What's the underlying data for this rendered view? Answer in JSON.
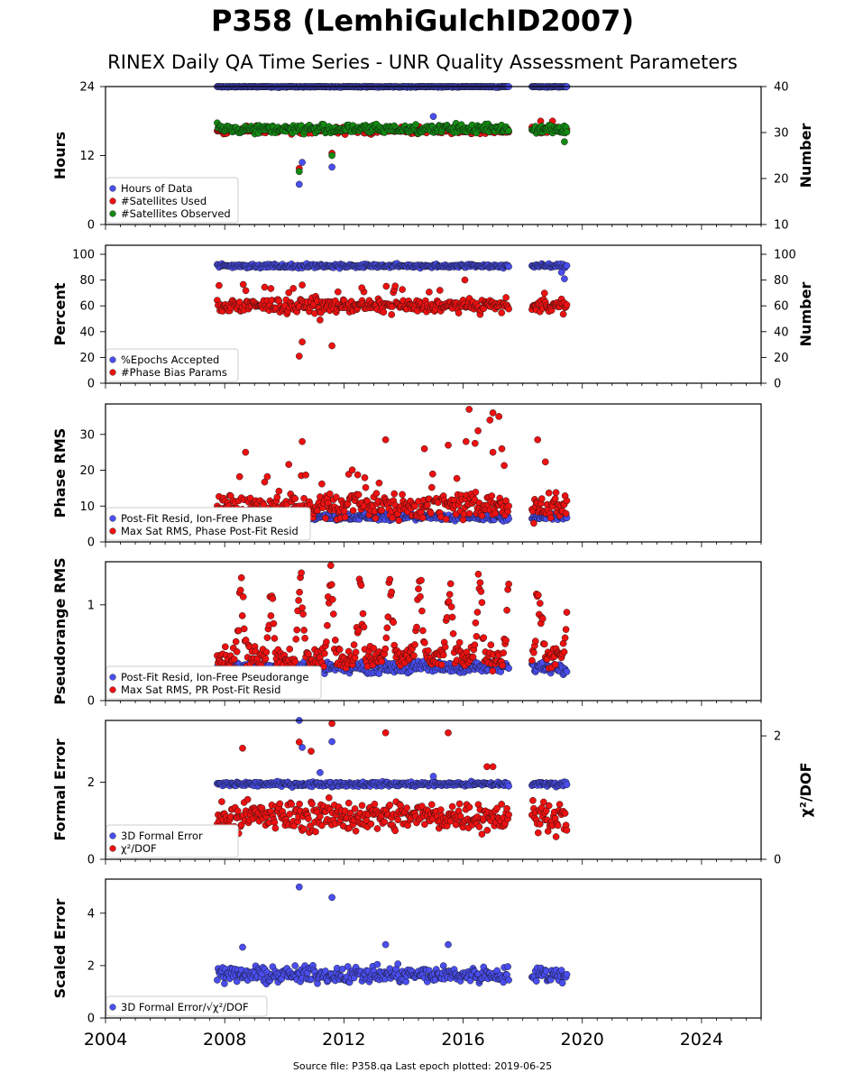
{
  "header": {
    "title": "P358 (LemhiGulchID2007)",
    "subtitle": "RINEX Daily QA Time Series - UNR Quality Assessment Parameters"
  },
  "footer": {
    "source": "Source file: P358.qa Last epoch plotted: 2019-06-25"
  },
  "colors": {
    "blue": "#4a4ef0",
    "red": "#ee1111",
    "green": "#138a13",
    "dark_blue": "#1a1f6a"
  },
  "chart_data": [
    {
      "type": "scatter",
      "id": "hours",
      "xlim": [
        2004,
        2026
      ],
      "x_ticks": [
        "2004",
        "2008",
        "2012",
        "2016",
        "2020",
        "2024"
      ],
      "ylabel": "Hours",
      "ylim": [
        0,
        24
      ],
      "yticks": [
        "0",
        "12",
        "24"
      ],
      "ylabel_right": "Number",
      "ylim_right": [
        10,
        40
      ],
      "yticks_right": [
        "10",
        "20",
        "30",
        "40"
      ],
      "series": [
        {
          "name": "Hours of Data",
          "color": "blue",
          "axis": "left",
          "base": 24.0,
          "noise": 0.1,
          "outliers": [
            [
              2010.5,
              7.0
            ],
            [
              2010.6,
              10.8
            ],
            [
              2011.6,
              10.0
            ],
            [
              2015.0,
              18.8
            ],
            [
              2010.9,
              17.0
            ]
          ]
        },
        {
          "name": "#Satellites Used",
          "color": "red",
          "axis": "right",
          "base": 30.5,
          "noise": 0.6,
          "outliers": [
            [
              2010.5,
              22.2
            ],
            [
              2011.6,
              25.5
            ],
            [
              2009.9,
              30.5
            ],
            [
              2018.6,
              32.5
            ],
            [
              2019.0,
              32.5
            ]
          ]
        },
        {
          "name": "#Satellites Observed",
          "color": "green",
          "axis": "right",
          "base": 30.8,
          "noise": 0.8,
          "outliers": [
            [
              2010.5,
              21.5
            ],
            [
              2011.6,
              25.0
            ],
            [
              2019.4,
              28.0
            ]
          ]
        }
      ]
    },
    {
      "type": "scatter",
      "id": "percent",
      "ylabel": "Percent",
      "ylim": [
        0,
        107
      ],
      "yticks": [
        "0",
        "20",
        "40",
        "60",
        "80",
        "100"
      ],
      "ylabel_right": "Number",
      "ylim_right": [
        0,
        107
      ],
      "yticks_right": [
        "0",
        "20",
        "40",
        "60",
        "80",
        "100"
      ],
      "series": [
        {
          "name": "%Epochs Accepted",
          "color": "blue",
          "axis": "left",
          "base": 91.0,
          "noise": 1.2,
          "outliers": [
            [
              2019.4,
              81.0
            ],
            [
              2019.3,
              86.0
            ]
          ]
        },
        {
          "name": "#Phase Bias Params",
          "color": "red",
          "axis": "right",
          "base": 60.0,
          "noise": 4.0,
          "outliers": [
            [
              2010.5,
              21.0
            ],
            [
              2010.6,
              32.0
            ],
            [
              2011.6,
              29.0
            ],
            [
              2011.2,
              49.0
            ],
            [
              2012.6,
              74.0
            ]
          ]
        }
      ]
    },
    {
      "type": "scatter",
      "id": "phase_rms",
      "ylabel": "Phase RMS",
      "ylim": [
        0,
        38.5
      ],
      "yticks": [
        "0",
        "10",
        "20",
        "30"
      ],
      "series": [
        {
          "name": "Post-Fit Resid, Ion-Free Phase",
          "color": "blue",
          "axis": "left",
          "base": 7.0,
          "noise": 0.8,
          "outliers": []
        },
        {
          "name": "Max Sat RMS, Phase Post-Fit Resid",
          "color": "red",
          "axis": "left",
          "base": 10.0,
          "noise": 3.0,
          "outliers": [
            [
              2016.2,
              37.0
            ],
            [
              2016.9,
              34.0
            ],
            [
              2017.0,
              36.0
            ],
            [
              2017.2,
              35.0
            ],
            [
              2013.4,
              28.5
            ],
            [
              2010.6,
              28.0
            ],
            [
              2018.5,
              28.5
            ],
            [
              2016.5,
              31.0
            ],
            [
              2016.1,
              28.0
            ],
            [
              2016.4,
              27.5
            ],
            [
              2015.5,
              27.0
            ],
            [
              2008.7,
              25.0
            ],
            [
              2014.7,
              26.0
            ],
            [
              2017.3,
              26.0
            ],
            [
              2017.0,
              25.0
            ]
          ]
        }
      ]
    },
    {
      "type": "scatter",
      "id": "pseudorange_rms",
      "ylabel": "Pseudorange RMS",
      "ylim": [
        0,
        1.45
      ],
      "yticks": [
        "0",
        "1"
      ],
      "series": [
        {
          "name": "Post-Fit Resid, Ion-Free Pseudorange",
          "color": "blue",
          "axis": "left",
          "base": 0.35,
          "noise": 0.05,
          "outliers": []
        },
        {
          "name": "Max Sat RMS, PR Post-Fit Resid",
          "color": "red",
          "axis": "left",
          "base": 0.45,
          "noise": 0.1,
          "seasonal_peak": 1.2,
          "outliers": []
        }
      ]
    },
    {
      "type": "scatter",
      "id": "formal_error",
      "ylabel": "Formal Error",
      "ylim": [
        0,
        3.6
      ],
      "yticks": [
        "0",
        "2"
      ],
      "ylabel_right": "χ²/DOF",
      "ylim_right": [
        0,
        2.25
      ],
      "yticks_right": [
        "0",
        "2"
      ],
      "series": [
        {
          "name": "3D Formal Error",
          "color": "blue",
          "axis": "left",
          "base": 1.95,
          "noise": 0.05,
          "outliers": [
            [
              2010.5,
              3.6
            ],
            [
              2010.6,
              2.9
            ],
            [
              2011.6,
              3.05
            ],
            [
              2011.2,
              2.25
            ],
            [
              2015.0,
              2.15
            ]
          ]
        },
        {
          "name": "χ²/DOF",
          "color": "red",
          "axis": "right",
          "base": 0.7,
          "noise": 0.2,
          "outliers": [
            [
              2011.6,
              2.2
            ],
            [
              2013.4,
              2.05
            ],
            [
              2015.5,
              2.05
            ],
            [
              2010.5,
              1.9
            ],
            [
              2008.6,
              1.8
            ],
            [
              2010.9,
              1.75
            ],
            [
              2016.8,
              1.5
            ],
            [
              2017.0,
              1.5
            ]
          ]
        }
      ]
    },
    {
      "type": "scatter",
      "id": "scaled_error",
      "ylabel": "Scaled Error",
      "ylim": [
        0,
        5.3
      ],
      "yticks": [
        "0",
        "2",
        "4"
      ],
      "series": [
        {
          "name": "3D Formal Error/√χ²/DOF",
          "color": "blue",
          "axis": "left",
          "base": 1.65,
          "noise": 0.25,
          "outliers": [
            [
              2010.5,
              5.0
            ],
            [
              2011.6,
              4.6
            ],
            [
              2013.4,
              2.8
            ],
            [
              2015.5,
              2.8
            ],
            [
              2008.6,
              2.7
            ]
          ]
        }
      ]
    }
  ]
}
